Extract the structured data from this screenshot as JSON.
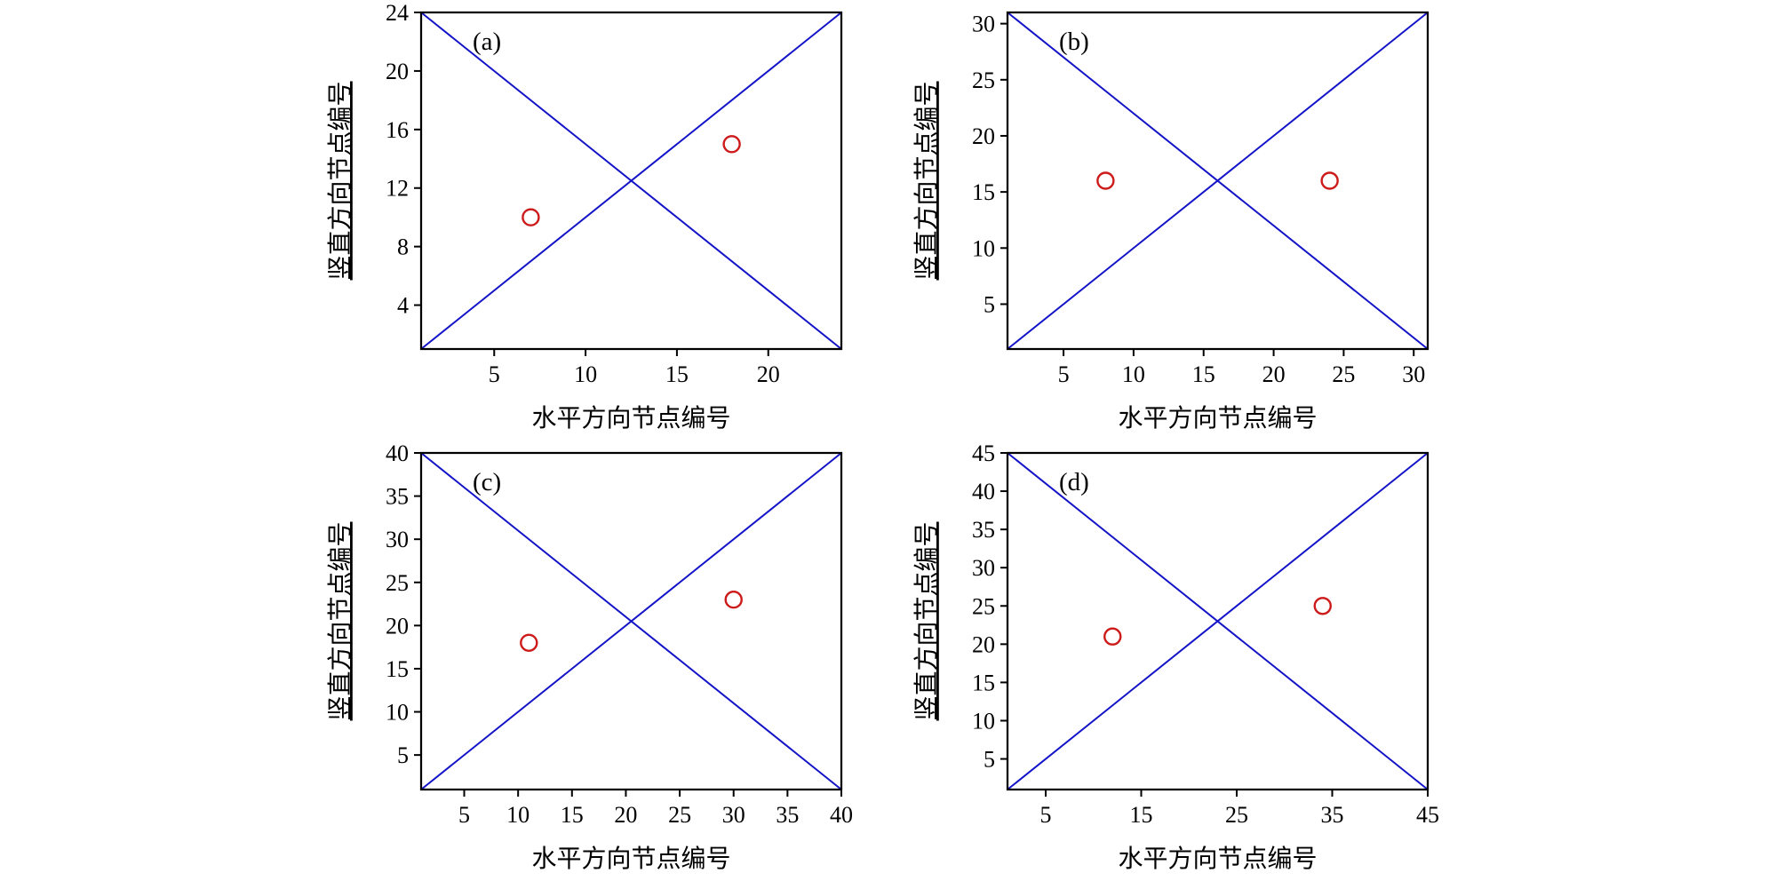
{
  "figure": {
    "background_color": "#ffffff",
    "axis_color": "#000000"
  },
  "chart_data": [
    {
      "type": "scatter",
      "panel_label": "(a)",
      "xlabel": "水平方向节点编号",
      "ylabel": "竖直方向节点编号",
      "xlim": [
        1,
        24
      ],
      "ylim": [
        1,
        24
      ],
      "xticks": [
        5,
        10,
        15,
        20
      ],
      "yticks": [
        4,
        8,
        12,
        16,
        20,
        24
      ],
      "diagonal_lines": [
        {
          "from": [
            1,
            1
          ],
          "to": [
            24,
            24
          ]
        },
        {
          "from": [
            1,
            24
          ],
          "to": [
            24,
            1
          ]
        }
      ],
      "points": [
        [
          7,
          10
        ],
        [
          18,
          15
        ]
      ],
      "line_color": "#1414c8",
      "marker_color": "#cd1a1a",
      "marker_style": "open-circle",
      "grid": false,
      "legend": "none"
    },
    {
      "type": "scatter",
      "panel_label": "(b)",
      "xlabel": "水平方向节点编号",
      "ylabel": "竖直方向节点编号",
      "xlim": [
        1,
        31
      ],
      "ylim": [
        1,
        31
      ],
      "xticks": [
        5,
        10,
        15,
        20,
        25,
        30
      ],
      "yticks": [
        5,
        10,
        15,
        20,
        25,
        30
      ],
      "diagonal_lines": [
        {
          "from": [
            1,
            1
          ],
          "to": [
            31,
            31
          ]
        },
        {
          "from": [
            1,
            31
          ],
          "to": [
            31,
            1
          ]
        }
      ],
      "points": [
        [
          8,
          16
        ],
        [
          24,
          16
        ]
      ],
      "line_color": "#1414c8",
      "marker_color": "#cd1a1a",
      "marker_style": "open-circle",
      "grid": false,
      "legend": "none"
    },
    {
      "type": "scatter",
      "panel_label": "(c)",
      "xlabel": "水平方向节点编号",
      "ylabel": "竖直方向节点编号",
      "xlim": [
        1,
        40
      ],
      "ylim": [
        1,
        40
      ],
      "xticks": [
        5,
        10,
        15,
        20,
        25,
        30,
        35,
        40
      ],
      "yticks": [
        5,
        10,
        15,
        20,
        25,
        30,
        35,
        40
      ],
      "diagonal_lines": [
        {
          "from": [
            1,
            1
          ],
          "to": [
            40,
            40
          ]
        },
        {
          "from": [
            1,
            40
          ],
          "to": [
            40,
            1
          ]
        }
      ],
      "points": [
        [
          11,
          18
        ],
        [
          30,
          23
        ]
      ],
      "line_color": "#1414c8",
      "marker_color": "#cd1a1a",
      "marker_style": "open-circle",
      "grid": false,
      "legend": "none"
    },
    {
      "type": "scatter",
      "panel_label": "(d)",
      "xlabel": "水平方向节点编号",
      "ylabel": "竖直方向节点编号",
      "xlim": [
        1,
        45
      ],
      "ylim": [
        1,
        45
      ],
      "xticks": [
        5,
        15,
        25,
        35,
        45
      ],
      "yticks": [
        5,
        10,
        15,
        20,
        25,
        30,
        35,
        40,
        45
      ],
      "diagonal_lines": [
        {
          "from": [
            1,
            1
          ],
          "to": [
            45,
            45
          ]
        },
        {
          "from": [
            1,
            45
          ],
          "to": [
            45,
            1
          ]
        }
      ],
      "points": [
        [
          12,
          21
        ],
        [
          34,
          25
        ]
      ],
      "line_color": "#1414c8",
      "marker_color": "#cd1a1a",
      "marker_style": "open-circle",
      "grid": false,
      "legend": "none"
    }
  ]
}
